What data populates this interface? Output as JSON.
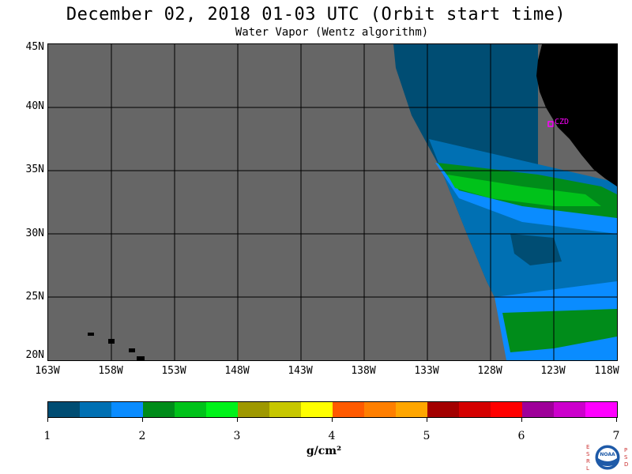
{
  "title": "December 02, 2018  01-03 UTC  (Orbit start time)",
  "subtitle": "Water Vapor (Wentz algorithm)",
  "map": {
    "lat_labels": [
      "45N",
      "40N",
      "35N",
      "30N",
      "25N",
      "20N"
    ],
    "lon_labels": [
      "163W",
      "158W",
      "153W",
      "148W",
      "143W",
      "138W",
      "133W",
      "128W",
      "123W",
      "118W"
    ],
    "station_label": "CZD",
    "colors": {
      "background_gray": "#666666",
      "land": "#000000",
      "station": "#ff00ff"
    }
  },
  "colorbar": {
    "colors": [
      "#004d73",
      "#0070b3",
      "#0a8cff",
      "#008c1a",
      "#00c21a",
      "#00f21a",
      "#9e9800",
      "#c7c700",
      "#ffff00",
      "#ff5a00",
      "#ff7f00",
      "#ffa600",
      "#a30000",
      "#d40000",
      "#ff0000",
      "#9e0099",
      "#cc00cc",
      "#ff00ff"
    ],
    "tick_labels": [
      "1",
      "2",
      "3",
      "4",
      "5",
      "6",
      "7"
    ],
    "units": "g/cm²"
  },
  "logo": {
    "left_letters": "ESRL",
    "right_letters": "PSD",
    "center_text": "NOAA"
  }
}
